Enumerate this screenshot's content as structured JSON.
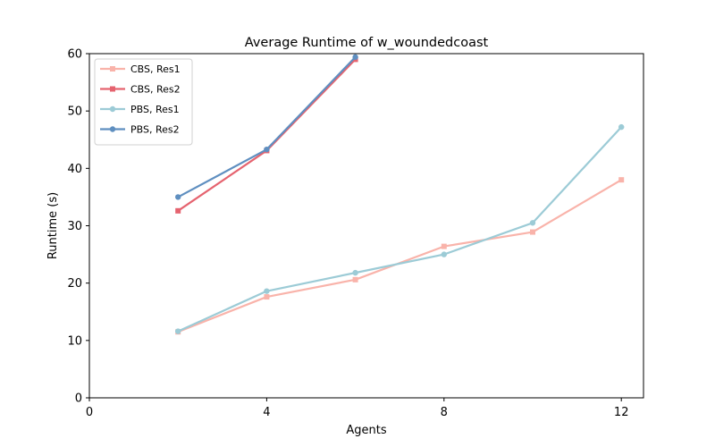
{
  "chart_data": {
    "type": "line",
    "title": "Average Runtime of w_woundedcoast",
    "xlabel": "Agents",
    "ylabel": "Runtime (s)",
    "xlim": [
      0,
      12.5
    ],
    "ylim": [
      0,
      60
    ],
    "xticks": [
      0,
      4,
      8,
      12
    ],
    "yticks": [
      0,
      10,
      20,
      30,
      40,
      50,
      60
    ],
    "grid": false,
    "legend_position": "top-left",
    "series": [
      {
        "name": "CBS, Res1",
        "color": "#f9b3aa",
        "marker": "square",
        "x": [
          2,
          4,
          6,
          8,
          10,
          12
        ],
        "y": [
          11.5,
          17.6,
          20.6,
          26.4,
          28.9,
          38.0
        ]
      },
      {
        "name": "CBS, Res2",
        "color": "#e5636f",
        "marker": "square",
        "x": [
          2,
          4,
          6
        ],
        "y": [
          32.6,
          43.1,
          59.0
        ]
      },
      {
        "name": "PBS, Res1",
        "color": "#9ccbd6",
        "marker": "circle",
        "x": [
          2,
          4,
          6,
          8,
          10,
          12
        ],
        "y": [
          11.6,
          18.6,
          21.8,
          25.0,
          30.5,
          47.2
        ]
      },
      {
        "name": "PBS, Res2",
        "color": "#5f8fc0",
        "marker": "circle",
        "x": [
          2,
          4,
          6
        ],
        "y": [
          35.0,
          43.3,
          59.4
        ]
      }
    ]
  }
}
